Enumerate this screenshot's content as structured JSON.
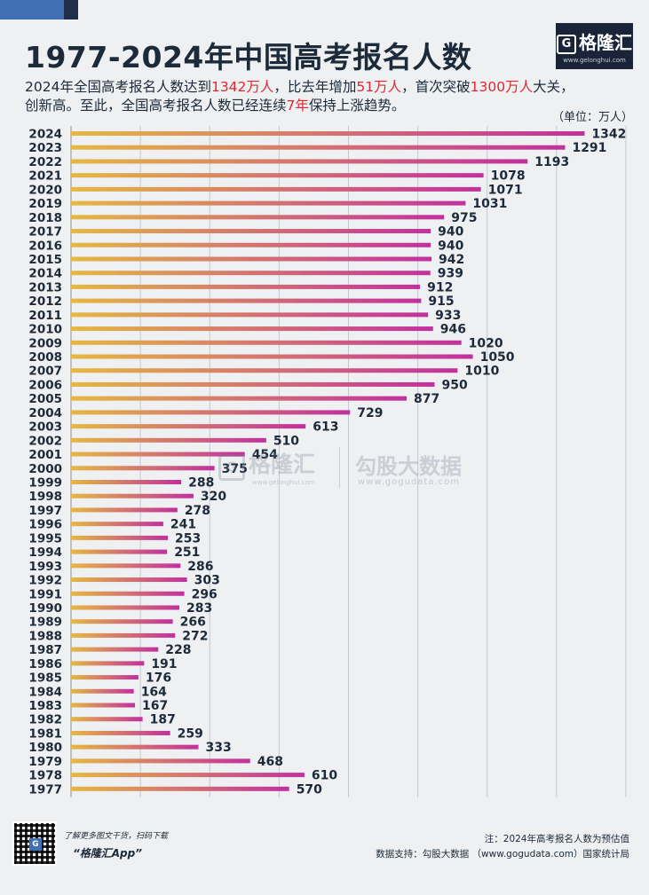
{
  "header": {
    "title": "1977-2024年中国高考报名人数",
    "subtitle_line1": [
      "2024年全国高考报名人数达到",
      "1342万人",
      "，比去年增加",
      "51万人",
      "，首次突破",
      "1300万人",
      "大关，"
    ],
    "subtitle_line2": [
      "创新高。至此，全国高考报名人数已经连续",
      "7年",
      "保持上涨趋势。"
    ],
    "unit": "（单位：万人）"
  },
  "logo": {
    "mark": "G",
    "name": "格隆汇",
    "url": "www.gelonghui.com"
  },
  "watermark": {
    "left_mark": "G",
    "left_name": "格隆汇",
    "left_url": "www.gelonghui.com",
    "right_name": "勾股大数据",
    "right_url": "www.gogudata.com"
  },
  "footer": {
    "qr_text": "了解更多图文干货，扫码下载",
    "qr_app": "“格隆汇App”",
    "note": "注：2024年高考报名人数为预估值",
    "source": "数据支持：勾股大数据 （www.gogudata.com）国家统计局"
  },
  "colors": {
    "bar_start": "#e5b842",
    "bar_end": "#c2309e",
    "highlight": "#e0262e",
    "text": "#1c2a3a",
    "grid": "#c4c9d0",
    "background": "#eef0f2"
  },
  "chart_data": {
    "type": "bar",
    "orientation": "horizontal",
    "title": "1977-2024年中国高考报名人数",
    "unit": "万人",
    "xlim": [
      0,
      1450
    ],
    "grid": true,
    "categories": [
      "2024",
      "2023",
      "2022",
      "2021",
      "2020",
      "2019",
      "2018",
      "2017",
      "2016",
      "2015",
      "2014",
      "2013",
      "2012",
      "2011",
      "2010",
      "2009",
      "2008",
      "2007",
      "2006",
      "2005",
      "2004",
      "2003",
      "2002",
      "2001",
      "2000",
      "1999",
      "1998",
      "1997",
      "1996",
      "1995",
      "1994",
      "1993",
      "1992",
      "1991",
      "1990",
      "1989",
      "1988",
      "1987",
      "1986",
      "1985",
      "1984",
      "1983",
      "1982",
      "1981",
      "1980",
      "1979",
      "1978",
      "1977"
    ],
    "values": [
      1342,
      1291,
      1193,
      1078,
      1071,
      1031,
      975,
      940,
      940,
      942,
      939,
      912,
      915,
      933,
      946,
      1020,
      1050,
      1010,
      950,
      877,
      729,
      613,
      510,
      454,
      375,
      288,
      320,
      278,
      241,
      253,
      251,
      286,
      303,
      296,
      283,
      266,
      272,
      228,
      191,
      176,
      164,
      167,
      187,
      259,
      333,
      468,
      610,
      570
    ]
  }
}
